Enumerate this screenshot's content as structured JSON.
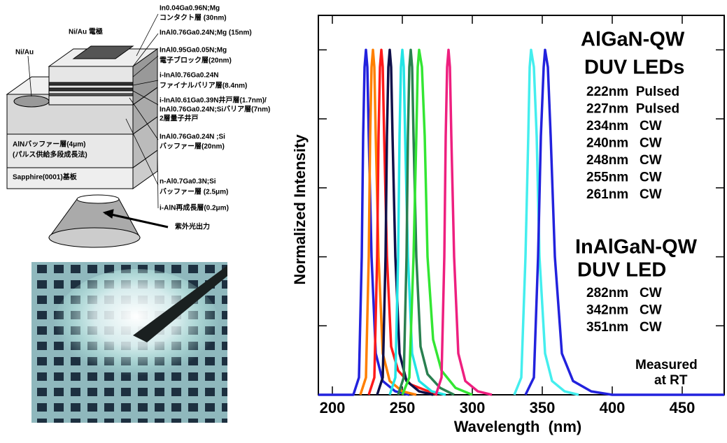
{
  "chart_data": {
    "type": "line",
    "xlabel": "Wavelength  (nm)",
    "ylabel": "Normalized Intensity",
    "xlim": [
      190,
      480
    ],
    "xticks": [
      200,
      250,
      300,
      350,
      400,
      450
    ],
    "ylim": [
      0,
      1.1
    ],
    "yticks": [
      0,
      0.2,
      0.4,
      0.6,
      0.8,
      1.0
    ],
    "annotations": [
      "AlGaN-QW",
      "DUV LEDs",
      "InAlGaN-QW",
      "DUV LED",
      "Measured",
      "at RT"
    ],
    "series": [
      {
        "name": "222nm  Pulsed",
        "color": "#2222dd",
        "x": [
          190,
          215,
          219,
          221,
          222,
          223,
          224,
          225,
          226,
          228,
          231,
          236,
          245,
          255
        ],
        "values": [
          0,
          0,
          0.05,
          0.4,
          0.75,
          0.95,
          1,
          0.95,
          0.75,
          0.4,
          0.12,
          0.04,
          0.01,
          0
        ]
      },
      {
        "name": "227nm  Pulsed",
        "color": "#ff7f00",
        "x": [
          220,
          224,
          226,
          227,
          228,
          229,
          230,
          231,
          233,
          236,
          241,
          250,
          260
        ],
        "values": [
          0,
          0.05,
          0.4,
          0.75,
          0.95,
          1,
          0.95,
          0.75,
          0.4,
          0.12,
          0.04,
          0.01,
          0
        ]
      },
      {
        "name": "234nm   CW",
        "color": "#ff1a1a",
        "x": [
          226,
          230,
          232,
          233,
          234,
          235,
          236,
          237,
          239,
          242,
          247,
          256,
          275
        ],
        "values": [
          0,
          0.05,
          0.4,
          0.75,
          0.95,
          1,
          0.95,
          0.75,
          0.4,
          0.14,
          0.07,
          0.03,
          0
        ]
      },
      {
        "name": "240nm   CW",
        "color": "#10104a",
        "x": [
          232,
          236,
          238,
          239,
          240,
          241,
          242,
          243,
          245,
          248,
          253,
          262,
          272
        ],
        "values": [
          0,
          0.05,
          0.4,
          0.75,
          0.95,
          1,
          0.95,
          0.75,
          0.4,
          0.12,
          0.04,
          0.01,
          0
        ]
      },
      {
        "name": "248nm   CW",
        "color": "#22e5e5",
        "x": [
          241,
          245,
          247,
          248,
          249,
          250,
          251,
          252,
          254,
          257,
          262,
          271,
          281
        ],
        "values": [
          0,
          0.05,
          0.4,
          0.75,
          0.95,
          1,
          0.95,
          0.75,
          0.4,
          0.12,
          0.04,
          0.01,
          0
        ]
      },
      {
        "name": "255nm   CW",
        "color": "#2a8050",
        "x": [
          247,
          251,
          253,
          254,
          255,
          256,
          257,
          258,
          260,
          263,
          268,
          277,
          287
        ],
        "values": [
          0,
          0.05,
          0.4,
          0.75,
          0.95,
          1,
          0.95,
          0.75,
          0.4,
          0.14,
          0.06,
          0.02,
          0
        ]
      },
      {
        "name": "261nm   CW",
        "color": "#33e633",
        "x": [
          250,
          255,
          258,
          260,
          261,
          262,
          264,
          266,
          268,
          272,
          278,
          288,
          300
        ],
        "values": [
          0,
          0.05,
          0.4,
          0.75,
          0.95,
          1,
          0.95,
          0.75,
          0.4,
          0.16,
          0.07,
          0.02,
          0
        ]
      },
      {
        "name": "282nm   CW",
        "color": "#ee1f7f",
        "x": [
          274,
          278,
          280,
          281,
          282,
          283,
          284,
          285,
          287,
          290,
          295,
          304,
          314
        ],
        "values": [
          0,
          0.05,
          0.4,
          0.75,
          0.95,
          1,
          0.95,
          0.75,
          0.4,
          0.12,
          0.04,
          0.01,
          0
        ]
      },
      {
        "name": "342nm   CW",
        "color": "#44eeee",
        "x": [
          330,
          335,
          338,
          340,
          341,
          342,
          344,
          346,
          348,
          352,
          357,
          366,
          376
        ],
        "values": [
          0,
          0.05,
          0.4,
          0.75,
          0.95,
          1,
          0.95,
          0.75,
          0.4,
          0.12,
          0.04,
          0.01,
          0
        ]
      },
      {
        "name": "351nm   CW",
        "color": "#2222dd",
        "x": [
          338,
          344,
          347,
          349,
          351,
          352,
          354,
          356,
          359,
          364,
          372,
          385,
          400,
          480
        ],
        "values": [
          0,
          0.05,
          0.4,
          0.75,
          0.95,
          1,
          0.95,
          0.75,
          0.4,
          0.12,
          0.04,
          0.01,
          0,
          0
        ]
      }
    ]
  },
  "diagram": {
    "labels": [
      "In0.04Ga0.96N;Mg",
      "コンタクト層 (30nm)",
      "Ni/Au 電極",
      "InAl0.76Ga0.24N;Mg (15nm)",
      "Ni/Au",
      "InAl0.95Ga0.05N;Mg",
      "電子ブロック層(20nm)",
      "i-InAl0.76Ga0.24N",
      "ファイナルバリア層(8.4nm)",
      "i-InAl0.61Ga0.39N井戸層(1.7nm)/",
      "InAl0.76Ga0.24N;Siバリア層(7nm)",
      "2層量子井戸",
      "InAl0.76Ga0.24N ;Si",
      "バッファー層(20nm)",
      "AlNバッファー層(4μm)",
      "(パルス供給多段成長法)",
      "Sapphire(0001)基板",
      "n-Al0.7Ga0.3N;Si",
      "バッファー層 (2.5μm)",
      "i-AlN再成長層(0.2μm)",
      "紫外光出力"
    ]
  }
}
